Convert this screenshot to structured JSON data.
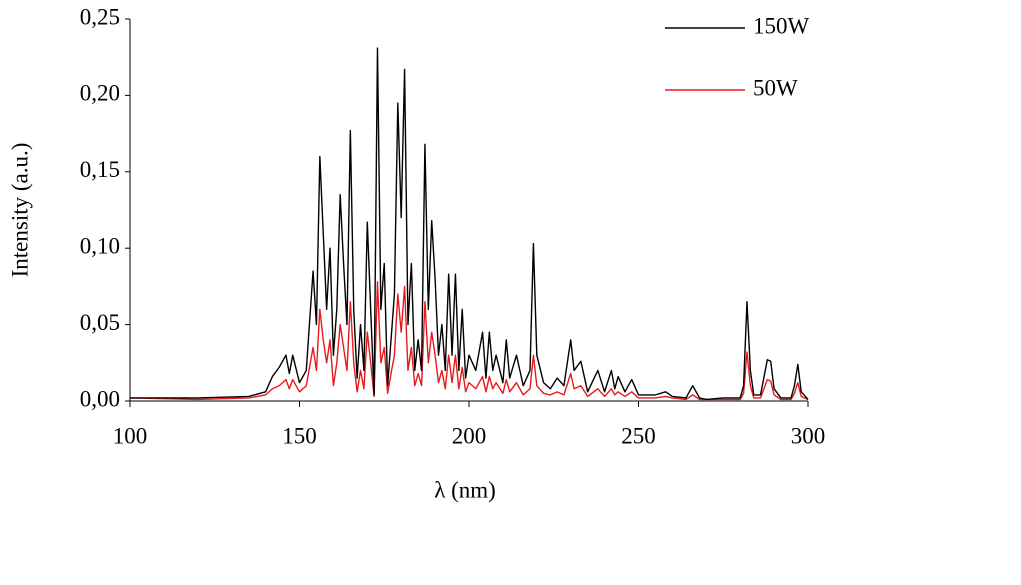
{
  "chart_data": {
    "type": "line",
    "xlabel": "λ (nm)",
    "ylabel": "Intensity (a.u.)",
    "xlim": [
      100,
      300
    ],
    "xticks": [
      100,
      150,
      200,
      250,
      300
    ],
    "ylim": [
      0,
      0.25
    ],
    "yticks": [
      {
        "value": 0,
        "label": "0,00"
      },
      {
        "value": 0.05,
        "label": "0,05"
      },
      {
        "value": 0.1,
        "label": "0,10"
      },
      {
        "value": 0.15,
        "label": "0,15"
      },
      {
        "value": 0.2,
        "label": "0,20"
      },
      {
        "value": 0.25,
        "label": "0,25"
      }
    ],
    "legend": "top-right",
    "x": [
      100,
      120,
      135,
      140,
      142,
      144,
      146,
      147,
      148,
      150,
      152,
      154,
      155,
      156,
      157,
      158,
      159,
      160,
      161,
      162,
      163,
      164,
      165,
      166,
      167,
      168,
      169,
      170,
      171,
      172,
      173,
      174,
      175,
      176,
      177,
      178,
      179,
      180,
      181,
      182,
      183,
      184,
      185,
      186,
      187,
      188,
      189,
      190,
      191,
      192,
      193,
      194,
      195,
      196,
      197,
      198,
      199,
      200,
      202,
      204,
      205,
      206,
      207,
      208,
      210,
      211,
      212,
      214,
      216,
      218,
      219,
      220,
      222,
      224,
      226,
      228,
      230,
      231,
      233,
      235,
      238,
      240,
      242,
      243,
      244,
      246,
      248,
      250,
      255,
      258,
      260,
      264,
      266,
      268,
      270,
      275,
      280,
      281,
      282,
      283,
      284,
      286,
      288,
      289,
      290,
      292,
      295,
      296,
      297,
      298,
      300
    ],
    "series": [
      {
        "name": "150W",
        "color": "#000000",
        "values": [
          0.002,
          0.002,
          0.003,
          0.006,
          0.016,
          0.022,
          0.03,
          0.018,
          0.03,
          0.012,
          0.02,
          0.085,
          0.05,
          0.16,
          0.11,
          0.06,
          0.1,
          0.03,
          0.06,
          0.135,
          0.09,
          0.05,
          0.177,
          0.06,
          0.015,
          0.05,
          0.02,
          0.117,
          0.06,
          0.004,
          0.231,
          0.06,
          0.09,
          0.01,
          0.04,
          0.07,
          0.195,
          0.12,
          0.217,
          0.05,
          0.09,
          0.02,
          0.04,
          0.02,
          0.168,
          0.06,
          0.118,
          0.08,
          0.03,
          0.05,
          0.02,
          0.083,
          0.03,
          0.083,
          0.02,
          0.06,
          0.015,
          0.03,
          0.02,
          0.045,
          0.015,
          0.045,
          0.02,
          0.03,
          0.012,
          0.04,
          0.015,
          0.03,
          0.01,
          0.02,
          0.103,
          0.03,
          0.012,
          0.008,
          0.015,
          0.01,
          0.04,
          0.02,
          0.026,
          0.006,
          0.02,
          0.006,
          0.02,
          0.008,
          0.016,
          0.006,
          0.014,
          0.004,
          0.004,
          0.006,
          0.003,
          0.002,
          0.01,
          0.002,
          0.001,
          0.002,
          0.002,
          0.01,
          0.065,
          0.02,
          0.004,
          0.004,
          0.027,
          0.026,
          0.008,
          0.002,
          0.002,
          0.01,
          0.024,
          0.006,
          0.001
        ]
      },
      {
        "name": "50W",
        "color": "#e8191c",
        "values": [
          0.002,
          0.001,
          0.002,
          0.004,
          0.008,
          0.01,
          0.014,
          0.008,
          0.014,
          0.006,
          0.01,
          0.035,
          0.02,
          0.06,
          0.04,
          0.025,
          0.04,
          0.01,
          0.025,
          0.05,
          0.035,
          0.02,
          0.065,
          0.025,
          0.006,
          0.02,
          0.008,
          0.045,
          0.025,
          0.003,
          0.078,
          0.025,
          0.035,
          0.005,
          0.018,
          0.03,
          0.07,
          0.045,
          0.075,
          0.02,
          0.035,
          0.01,
          0.018,
          0.01,
          0.065,
          0.025,
          0.045,
          0.03,
          0.012,
          0.02,
          0.008,
          0.03,
          0.012,
          0.03,
          0.008,
          0.022,
          0.006,
          0.012,
          0.008,
          0.016,
          0.006,
          0.016,
          0.008,
          0.012,
          0.005,
          0.014,
          0.006,
          0.012,
          0.004,
          0.008,
          0.03,
          0.01,
          0.005,
          0.004,
          0.006,
          0.004,
          0.018,
          0.008,
          0.01,
          0.003,
          0.008,
          0.003,
          0.008,
          0.004,
          0.006,
          0.003,
          0.006,
          0.002,
          0.002,
          0.003,
          0.002,
          0.001,
          0.004,
          0.001,
          0.001,
          0.001,
          0.001,
          0.005,
          0.032,
          0.01,
          0.002,
          0.002,
          0.014,
          0.013,
          0.004,
          0.001,
          0.001,
          0.005,
          0.012,
          0.003,
          0.001
        ]
      }
    ]
  }
}
